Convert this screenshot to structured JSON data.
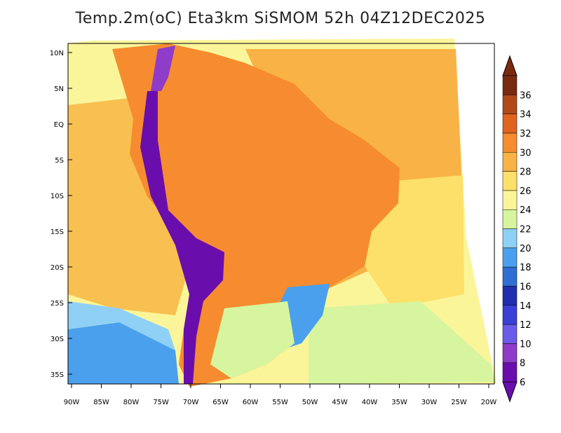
{
  "title": "Temp.2m(oC) Eta3km SiSMOM 52h 04Z12DEC2025",
  "lat_labels": [
    "10N",
    "5N",
    "EQ",
    "5S",
    "10S",
    "15S",
    "20S",
    "25S",
    "30S",
    "35S"
  ],
  "lon_labels": [
    "90W",
    "85W",
    "80W",
    "75W",
    "70W",
    "65W",
    "60W",
    "55W",
    "50W",
    "45W",
    "40W",
    "35W",
    "30W",
    "25W",
    "20W"
  ],
  "colorbar": {
    "levels": [
      "6",
      "8",
      "10",
      "12",
      "14",
      "16",
      "18",
      "20",
      "22",
      "24",
      "26",
      "28",
      "30",
      "32",
      "34",
      "36"
    ],
    "colors": [
      "#6a0dad",
      "#8e3cc9",
      "#6b5be8",
      "#3a3fd6",
      "#1f2fb0",
      "#2f6fd4",
      "#4aa0ec",
      "#8fd0f7",
      "#d7f59e",
      "#fbf59a",
      "#fde069",
      "#f9b245",
      "#f68c2f",
      "#e0641f",
      "#b04a18",
      "#7a2a10"
    ]
  },
  "colors": {
    "ocean_warm": "#f8c050",
    "ocean_mild": "#fde069",
    "ocean_cool": "#fbf59a",
    "andes_cold": "#6a0dad"
  }
}
